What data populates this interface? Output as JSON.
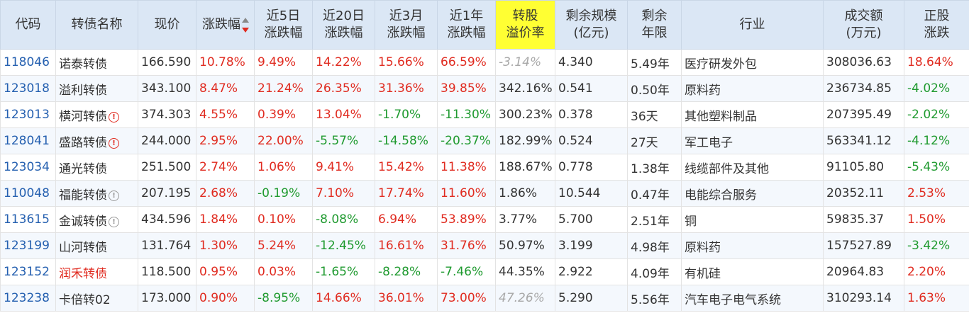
{
  "headers": {
    "code": "代码",
    "name": "转债名称",
    "price": "现价",
    "change": "涨跌幅",
    "d5_l1": "近5日",
    "d5_l2": "涨跌幅",
    "d20_l1": "近20日",
    "d20_l2": "涨跌幅",
    "m3_l1": "近3月",
    "m3_l2": "涨跌幅",
    "y1_l1": "近1年",
    "y1_l2": "涨跌幅",
    "prem_l1": "转股",
    "prem_l2": "溢价率",
    "scale_l1": "剩余规模",
    "scale_l2": "(亿元)",
    "term_l1": "剩余",
    "term_l2": "年限",
    "industry": "行业",
    "vol_l1": "成交额",
    "vol_l2": "(万元)",
    "stock_l1": "正股",
    "stock_l2": "涨跌"
  },
  "rows": [
    {
      "code": "118046",
      "name": "诺泰转债",
      "warn": "",
      "price": "166.590",
      "change": "10.78%",
      "d5": "9.49%",
      "d20": "14.22%",
      "m3": "15.66%",
      "y1": "66.59%",
      "prem": "-3.14%",
      "scale": "4.340",
      "term": "5.49年",
      "industry": "医疗研发外包",
      "vol": "308036.63",
      "stock": "18.64%"
    },
    {
      "code": "123018",
      "name": "溢利转债",
      "warn": "",
      "price": "343.100",
      "change": "8.47%",
      "d5": "21.24%",
      "d20": "26.35%",
      "m3": "31.36%",
      "y1": "39.85%",
      "prem": "342.16%",
      "scale": "0.541",
      "term": "0.50年",
      "industry": "原料药",
      "vol": "236734.85",
      "stock": "-4.02%"
    },
    {
      "code": "123013",
      "name": "横河转债",
      "warn": "red",
      "price": "374.303",
      "change": "4.55%",
      "d5": "0.39%",
      "d20": "13.04%",
      "m3": "-1.70%",
      "y1": "-11.30%",
      "prem": "300.23%",
      "scale": "0.378",
      "term": "36天",
      "industry": "其他塑料制品",
      "vol": "207395.49",
      "stock": "-2.02%"
    },
    {
      "code": "128041",
      "name": "盛路转债",
      "warn": "red",
      "price": "244.000",
      "change": "2.95%",
      "d5": "22.00%",
      "d20": "-5.57%",
      "m3": "-14.58%",
      "y1": "-20.37%",
      "prem": "182.99%",
      "scale": "0.524",
      "term": "27天",
      "industry": "军工电子",
      "vol": "563341.12",
      "stock": "-4.12%"
    },
    {
      "code": "123034",
      "name": "通光转债",
      "warn": "",
      "price": "251.500",
      "change": "2.74%",
      "d5": "1.06%",
      "d20": "9.41%",
      "m3": "15.42%",
      "y1": "11.38%",
      "prem": "188.67%",
      "scale": "0.778",
      "term": "1.38年",
      "industry": "线缆部件及其他",
      "vol": "91105.80",
      "stock": "-5.43%"
    },
    {
      "code": "110048",
      "name": "福能转债",
      "warn": "grey",
      "price": "207.195",
      "change": "2.68%",
      "d5": "-0.19%",
      "d20": "7.10%",
      "m3": "17.74%",
      "y1": "11.60%",
      "prem": "1.86%",
      "scale": "10.544",
      "term": "0.47年",
      "industry": "电能综合服务",
      "vol": "20352.11",
      "stock": "2.53%"
    },
    {
      "code": "113615",
      "name": "金诚转债",
      "warn": "grey",
      "price": "434.596",
      "change": "1.84%",
      "d5": "0.10%",
      "d20": "-8.08%",
      "m3": "6.94%",
      "y1": "53.89%",
      "prem": "3.77%",
      "scale": "5.700",
      "term": "2.51年",
      "industry": "铜",
      "vol": "59835.37",
      "stock": "1.50%"
    },
    {
      "code": "123199",
      "name": "山河转债",
      "warn": "",
      "price": "131.764",
      "change": "1.30%",
      "d5": "5.24%",
      "d20": "-12.45%",
      "m3": "16.61%",
      "y1": "31.76%",
      "prem": "50.97%",
      "scale": "3.199",
      "term": "4.98年",
      "industry": "原料药",
      "vol": "157527.89",
      "stock": "-3.42%"
    },
    {
      "code": "123152",
      "name": "润禾转债",
      "warn": "",
      "price": "118.500",
      "change": "0.95%",
      "d5": "0.03%",
      "d20": "-1.65%",
      "m3": "-8.28%",
      "y1": "-7.46%",
      "prem": "44.35%",
      "scale": "2.922",
      "term": "4.09年",
      "industry": "有机硅",
      "vol": "20964.83",
      "stock": "2.20%"
    },
    {
      "code": "123238",
      "name": "卡倍转02",
      "warn": "",
      "price": "173.000",
      "change": "0.90%",
      "d5": "-8.95%",
      "d20": "14.66%",
      "m3": "36.01%",
      "y1": "73.00%",
      "prem": "47.26%",
      "scale": "5.290",
      "term": "5.56年",
      "industry": "汽车电子电气系统",
      "vol": "310293.14",
      "stock": "1.63%"
    }
  ]
}
